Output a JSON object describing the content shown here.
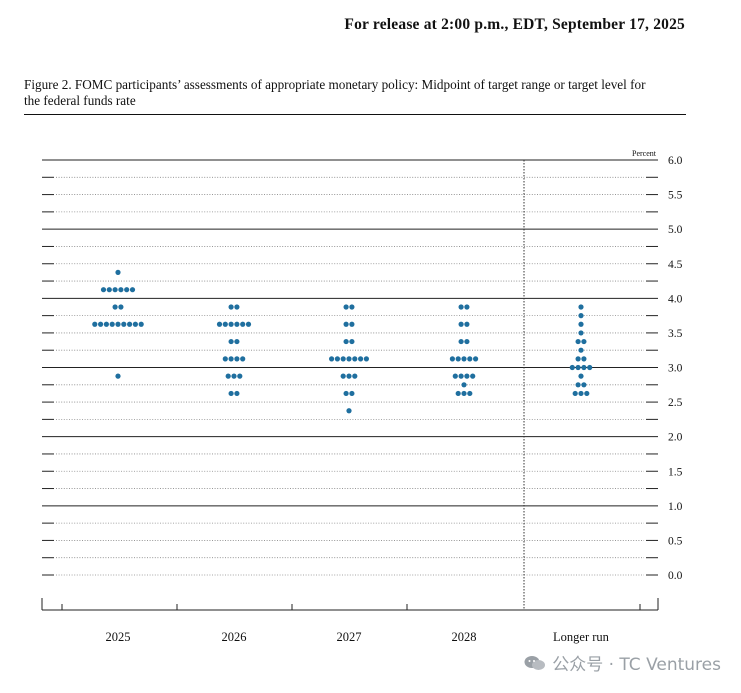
{
  "release_line": "For release at 2:00 p.m., EDT, September 17, 2025",
  "figure_caption": "Figure 2. FOMC participants’ assessments of appropriate monetary policy: Midpoint of target range or target level for the federal funds rate",
  "watermark": "公众号 · TC Ventures",
  "colors": {
    "dot": "#1f6f9f",
    "solid_line": "#222222",
    "dotted_line": "#888888"
  },
  "chart_data": {
    "type": "scatter",
    "unit_label": "Percent",
    "ylim": [
      -0.25,
      6.0
    ],
    "y_ticks": [
      "6.0",
      "5.5",
      "5.0",
      "4.5",
      "4.0",
      "3.5",
      "3.0",
      "2.5",
      "2.0",
      "1.5",
      "1.0",
      "0.5",
      "0.0"
    ],
    "solid_gridlines": [
      6.0,
      5.0,
      4.0,
      3.0,
      2.0,
      1.0
    ],
    "dotted_gridline_step": 0.25,
    "categories": [
      "2025",
      "2026",
      "2027",
      "2028",
      "Longer run"
    ],
    "series": [
      {
        "category": "2025",
        "dots": [
          {
            "y": 4.375,
            "count": 1
          },
          {
            "y": 4.125,
            "count": 6
          },
          {
            "y": 3.875,
            "count": 2
          },
          {
            "y": 3.625,
            "count": 9
          },
          {
            "y": 2.875,
            "count": 1
          }
        ]
      },
      {
        "category": "2026",
        "dots": [
          {
            "y": 3.875,
            "count": 2
          },
          {
            "y": 3.625,
            "count": 6
          },
          {
            "y": 3.375,
            "count": 2
          },
          {
            "y": 3.125,
            "count": 4
          },
          {
            "y": 2.875,
            "count": 3
          },
          {
            "y": 2.625,
            "count": 2
          }
        ]
      },
      {
        "category": "2027",
        "dots": [
          {
            "y": 3.875,
            "count": 2
          },
          {
            "y": 3.625,
            "count": 2
          },
          {
            "y": 3.375,
            "count": 2
          },
          {
            "y": 3.125,
            "count": 7
          },
          {
            "y": 2.875,
            "count": 3
          },
          {
            "y": 2.625,
            "count": 2
          },
          {
            "y": 2.375,
            "count": 1
          }
        ]
      },
      {
        "category": "2028",
        "dots": [
          {
            "y": 3.875,
            "count": 2
          },
          {
            "y": 3.625,
            "count": 2
          },
          {
            "y": 3.375,
            "count": 2
          },
          {
            "y": 3.125,
            "count": 5
          },
          {
            "y": 2.875,
            "count": 4
          },
          {
            "y": 2.75,
            "count": 1
          },
          {
            "y": 2.625,
            "count": 3
          }
        ]
      },
      {
        "category": "Longer run",
        "dots": [
          {
            "y": 3.875,
            "count": 1
          },
          {
            "y": 3.75,
            "count": 1
          },
          {
            "y": 3.625,
            "count": 1
          },
          {
            "y": 3.5,
            "count": 1
          },
          {
            "y": 3.375,
            "count": 2
          },
          {
            "y": 3.25,
            "count": 1
          },
          {
            "y": 3.125,
            "count": 2
          },
          {
            "y": 3.0,
            "count": 4
          },
          {
            "y": 2.875,
            "count": 1
          },
          {
            "y": 2.75,
            "count": 2
          },
          {
            "y": 2.625,
            "count": 3
          }
        ]
      }
    ]
  }
}
